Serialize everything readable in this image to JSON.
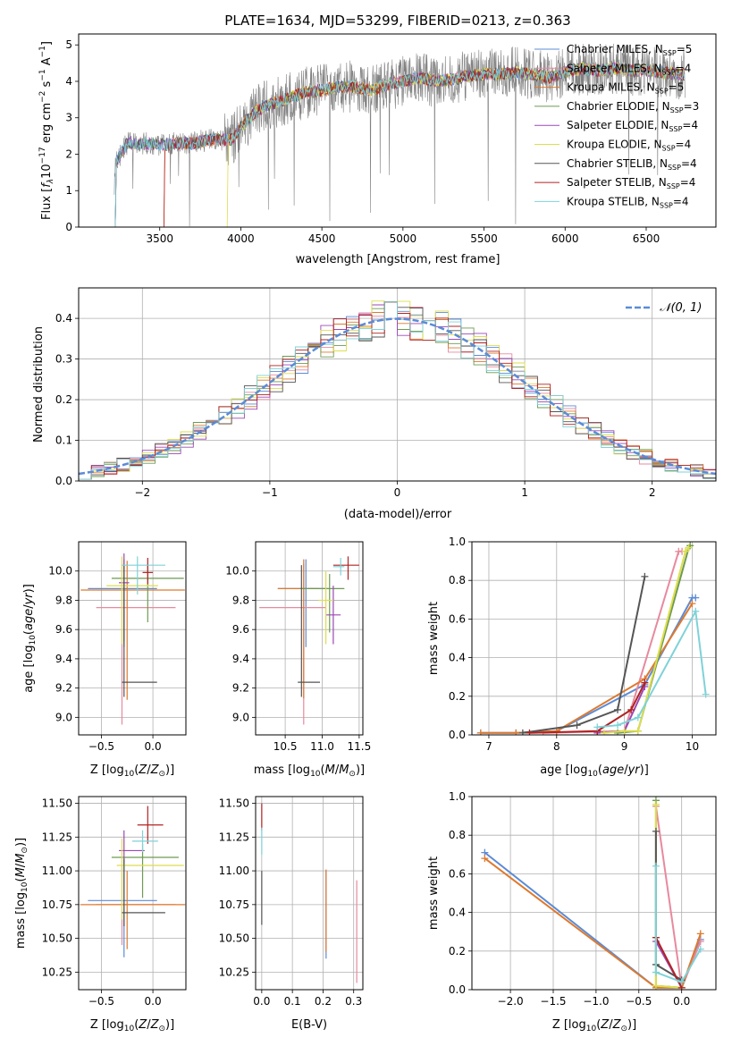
{
  "colors": {
    "Chabrier MILES": "#5b8bd6",
    "Salpeter MILES": "#e8899e",
    "Kroupa MILES": "#dd7a2f",
    "Chabrier ELODIE": "#6e9a52",
    "Salpeter ELODIE": "#9b48b5",
    "Kroupa ELODIE": "#dede4e",
    "Chabrier STELIB": "#555555",
    "Salpeter STELIB": "#b22222",
    "Kroupa STELIB": "#7fd2d8"
  },
  "chart_data": [
    {
      "id": "spectrum",
      "type": "line",
      "title": "PLATE=1634, MJD=53299, FIBERID=0213, z=0.363",
      "xlabel": "wavelength [Angstrom, rest frame]",
      "ylabel": "Flux [fλ10⁻¹⁷ erg cm⁻² s⁻¹ A⁻¹]",
      "xlim": [
        3000,
        6930
      ],
      "ylim": [
        0,
        5.3
      ],
      "xticks": [
        3500,
        4000,
        4500,
        5000,
        5500,
        6000,
        6500
      ],
      "yticks": [
        0,
        1,
        2,
        3,
        4,
        5
      ],
      "legend_position": "top-right",
      "legend": [
        {
          "label": "Chabrier MILES, N",
          "sub": "SSP",
          "tail": "=5",
          "color": "#5b8bd6"
        },
        {
          "label": "Salpeter MILES, N",
          "sub": "SSP",
          "tail": "=4",
          "color": "#e8899e"
        },
        {
          "label": "Kroupa MILES, N",
          "sub": "SSP",
          "tail": "=5",
          "color": "#dd7a2f"
        },
        {
          "label": "Chabrier ELODIE, N",
          "sub": "SSP",
          "tail": "=3",
          "color": "#6e9a52"
        },
        {
          "label": "Salpeter ELODIE, N",
          "sub": "SSP",
          "tail": "=4",
          "color": "#9b48b5"
        },
        {
          "label": "Kroupa ELODIE, N",
          "sub": "SSP",
          "tail": "=4",
          "color": "#dede4e"
        },
        {
          "label": "Chabrier STELIB, N",
          "sub": "SSP",
          "tail": "=4",
          "color": "#555555"
        },
        {
          "label": "Salpeter STELIB, N",
          "sub": "SSP",
          "tail": "=4",
          "color": "#b22222"
        },
        {
          "label": "Kroupa STELIB, N",
          "sub": "SSP",
          "tail": "=4",
          "color": "#7fd2d8"
        }
      ],
      "model_continuum": {
        "x": [
          3200,
          3230,
          3300,
          3400,
          3500,
          3600,
          3700,
          3800,
          3900,
          3950,
          4000,
          4100,
          4200,
          4300,
          4400,
          4500,
          4600,
          4700,
          4800,
          4900,
          5000,
          5100,
          5200,
          5300,
          5400,
          5500,
          5600,
          5700,
          5800,
          5900,
          6000,
          6100,
          6200,
          6300,
          6400,
          6500,
          6600,
          6700,
          6750
        ],
        "y": [
          0.0,
          1.8,
          2.3,
          2.3,
          2.25,
          2.3,
          2.3,
          2.4,
          2.4,
          2.4,
          2.75,
          3.2,
          3.4,
          3.55,
          3.7,
          3.75,
          3.85,
          3.85,
          3.75,
          3.9,
          4.0,
          4.1,
          4.0,
          4.05,
          4.15,
          4.2,
          4.2,
          4.25,
          4.2,
          4.1,
          4.25,
          4.35,
          4.3,
          4.35,
          4.3,
          4.3,
          4.25,
          4.2,
          4.2
        ]
      },
      "data_spectrum": {
        "xrange": [
          3220,
          6740
        ],
        "noise_level": 0.45,
        "color": "#808080"
      }
    },
    {
      "id": "residuals",
      "type": "bar",
      "xlabel": "(data-model)/error",
      "ylabel": "Normed distribution",
      "xlim": [
        -2.5,
        2.5
      ],
      "ylim": [
        0,
        0.475
      ],
      "xticks": [
        -2,
        -1,
        0,
        1,
        2
      ],
      "yticks": [
        0.0,
        0.1,
        0.2,
        0.3,
        0.4
      ],
      "legend_position": "top-right",
      "legend": [
        {
          "label": "𝒩(0, 1)",
          "color": "#5b8bd6",
          "style": "dashed"
        }
      ],
      "bin_width": 0.1,
      "gaussian": {
        "mean": 0,
        "sigma": 1,
        "peak": 0.399
      }
    },
    {
      "id": "age-vs-Z",
      "type": "scatter",
      "xlabel": "Z [log₁₀(Z/Z⊙)]",
      "ylabel": "age  [log₁₀(age/yr)]",
      "xlim": [
        -0.72,
        0.32
      ],
      "ylim": [
        8.88,
        10.2
      ],
      "xticks": [
        -0.5,
        0.0
      ],
      "yticks": [
        9.0,
        9.2,
        9.4,
        9.6,
        9.8,
        10.0
      ],
      "points": [
        {
          "model": "Chabrier MILES",
          "x": -0.28,
          "y": 9.88,
          "xerr": [
            0.35,
            0.32
          ],
          "yerr": [
            0.4,
            0.2
          ]
        },
        {
          "model": "Salpeter MILES",
          "x": -0.3,
          "y": 9.75,
          "xerr": [
            0.25,
            0.52
          ],
          "yerr": [
            0.8,
            0.3
          ]
        },
        {
          "model": "Kroupa MILES",
          "x": -0.25,
          "y": 9.87,
          "xerr": [
            0.45,
            0.56
          ],
          "yerr": [
            0.75,
            0.2
          ]
        },
        {
          "model": "Chabrier ELODIE",
          "x": -0.05,
          "y": 9.95,
          "xerr": [
            0.35,
            0.35
          ],
          "yerr": [
            0.3,
            0.1
          ]
        },
        {
          "model": "Salpeter ELODIE",
          "x": -0.28,
          "y": 9.92,
          "xerr": [
            0.05,
            0.05
          ],
          "yerr": [
            0.4,
            0.2
          ]
        },
        {
          "model": "Kroupa ELODIE",
          "x": -0.3,
          "y": 9.9,
          "xerr": [
            0.15,
            0.35
          ],
          "yerr": [
            0.4,
            0.2
          ]
        },
        {
          "model": "Chabrier STELIB",
          "x": -0.28,
          "y": 9.24,
          "xerr": [
            0.02,
            0.32
          ],
          "yerr": [
            0.1,
            0.8
          ]
        },
        {
          "model": "Salpeter STELIB",
          "x": -0.05,
          "y": 9.99,
          "xerr": [
            0.05,
            0.05
          ],
          "yerr": [
            0.08,
            0.1
          ]
        },
        {
          "model": "Kroupa STELIB",
          "x": -0.15,
          "y": 10.04,
          "xerr": [
            0.15,
            0.27
          ],
          "yerr": [
            0.2,
            0.06
          ]
        }
      ]
    },
    {
      "id": "age-vs-mass",
      "type": "scatter",
      "xlabel": "mass [log₁₀(M/M⊙)]",
      "ylabel": "",
      "xlim": [
        10.1,
        11.55
      ],
      "ylim": [
        8.88,
        10.2
      ],
      "xticks": [
        10.5,
        11.0,
        11.5
      ],
      "yticks": [
        9.0,
        9.2,
        9.4,
        9.6,
        9.8,
        10.0
      ],
      "points": [
        {
          "model": "Chabrier MILES",
          "x": 10.78,
          "y": 9.88,
          "xerr": [
            0.38,
            0.3
          ],
          "yerr": [
            0.4,
            0.2
          ]
        },
        {
          "model": "Salpeter MILES",
          "x": 10.75,
          "y": 9.75,
          "xerr": [
            0.6,
            0.3
          ],
          "yerr": [
            0.8,
            0.3
          ]
        },
        {
          "model": "Kroupa MILES",
          "x": 10.75,
          "y": 9.88,
          "xerr": [
            0.35,
            0.2
          ],
          "yerr": [
            0.75,
            0.2
          ]
        },
        {
          "model": "Chabrier ELODIE",
          "x": 11.1,
          "y": 9.88,
          "xerr": [
            0.4,
            0.2
          ],
          "yerr": [
            0.3,
            0.1
          ]
        },
        {
          "model": "Salpeter ELODIE",
          "x": 11.15,
          "y": 9.7,
          "xerr": [
            0.1,
            0.1
          ],
          "yerr": [
            0.2,
            0.2
          ]
        },
        {
          "model": "Kroupa ELODIE",
          "x": 11.05,
          "y": 9.8,
          "xerr": [
            0.1,
            0.1
          ],
          "yerr": [
            0.3,
            0.2
          ]
        },
        {
          "model": "Chabrier STELIB",
          "x": 10.72,
          "y": 9.24,
          "xerr": [
            0.05,
            0.25
          ],
          "yerr": [
            0.1,
            0.8
          ]
        },
        {
          "model": "Salpeter STELIB",
          "x": 11.35,
          "y": 10.04,
          "xerr": [
            0.2,
            0.15
          ],
          "yerr": [
            0.1,
            0.06
          ]
        },
        {
          "model": "Kroupa STELIB",
          "x": 11.25,
          "y": 10.03,
          "xerr": [
            0.1,
            0.05
          ],
          "yerr": [
            0.06,
            0.06
          ]
        }
      ]
    },
    {
      "id": "weight-vs-age",
      "type": "line",
      "xlabel": "age  [log₁₀(age/yr)]",
      "ylabel": "mass weight",
      "xlim": [
        6.75,
        10.35
      ],
      "ylim": [
        0,
        1.0
      ],
      "xticks": [
        7,
        8,
        9,
        10
      ],
      "yticks": [
        0.0,
        0.2,
        0.4,
        0.6,
        0.8,
        1.0
      ],
      "series": [
        {
          "model": "Chabrier MILES",
          "x": [
            6.88,
            7.4,
            8.0,
            9.3,
            10.0,
            10.05
          ],
          "y": [
            0.01,
            0.01,
            0.02,
            0.26,
            0.71,
            0.71
          ]
        },
        {
          "model": "Salpeter MILES",
          "x": [
            7.8,
            9.0,
            9.8,
            9.85
          ],
          "y": [
            0.01,
            0.02,
            0.95,
            0.95
          ]
        },
        {
          "model": "Kroupa MILES",
          "x": [
            6.88,
            7.4,
            8.0,
            9.3,
            10.0
          ],
          "y": [
            0.01,
            0.01,
            0.02,
            0.29,
            0.68
          ]
        },
        {
          "model": "Chabrier ELODIE",
          "x": [
            8.9,
            9.2,
            9.95,
            9.97
          ],
          "y": [
            0.01,
            0.02,
            0.97,
            0.98
          ]
        },
        {
          "model": "Salpeter ELODIE",
          "x": [
            8.6,
            9.0,
            9.3
          ],
          "y": [
            0.01,
            0.02,
            0.25
          ]
        },
        {
          "model": "Kroupa ELODIE",
          "x": [
            8.7,
            9.0,
            9.2,
            9.9,
            9.95
          ],
          "y": [
            0.01,
            0.02,
            0.02,
            0.95,
            0.97
          ]
        },
        {
          "model": "Chabrier STELIB",
          "x": [
            7.5,
            8.3,
            8.9,
            9.3
          ],
          "y": [
            0.01,
            0.05,
            0.13,
            0.82
          ]
        },
        {
          "model": "Salpeter STELIB",
          "x": [
            7.6,
            8.6,
            9.1,
            9.3
          ],
          "y": [
            0.01,
            0.02,
            0.13,
            0.27
          ]
        },
        {
          "model": "Kroupa STELIB",
          "x": [
            8.6,
            8.9,
            9.2,
            10.05,
            10.2
          ],
          "y": [
            0.04,
            0.05,
            0.09,
            0.64,
            0.21
          ]
        }
      ]
    },
    {
      "id": "mass-vs-Z",
      "type": "scatter",
      "xlabel": "Z [log₁₀(Z/Z⊙)]",
      "ylabel": "mass [log₁₀(M/M⊙)]",
      "xlim": [
        -0.72,
        0.32
      ],
      "ylim": [
        10.12,
        11.55
      ],
      "xticks": [
        -0.5,
        0.0
      ],
      "yticks": [
        10.25,
        10.5,
        10.75,
        11.0,
        11.25,
        11.5
      ],
      "points": [
        {
          "model": "Chabrier MILES",
          "x": -0.28,
          "y": 10.78,
          "xerr": [
            0.35,
            0.32
          ],
          "yerr": [
            0.42,
            0.3
          ]
        },
        {
          "model": "Salpeter MILES",
          "x": -0.3,
          "y": 10.75,
          "xerr": [
            0.25,
            0.52
          ],
          "yerr": [
            0.3,
            0.3
          ]
        },
        {
          "model": "Kroupa MILES",
          "x": -0.25,
          "y": 10.75,
          "xerr": [
            0.45,
            0.56
          ],
          "yerr": [
            0.33,
            0.25
          ]
        },
        {
          "model": "Chabrier ELODIE",
          "x": -0.1,
          "y": 11.1,
          "xerr": [
            0.3,
            0.35
          ],
          "yerr": [
            0.3,
            0.1
          ]
        },
        {
          "model": "Salpeter ELODIE",
          "x": -0.28,
          "y": 11.15,
          "xerr": [
            0.05,
            0.2
          ],
          "yerr": [
            0.1,
            0.15
          ]
        },
        {
          "model": "Kroupa ELODIE",
          "x": -0.3,
          "y": 11.04,
          "xerr": [
            0.05,
            0.6
          ],
          "yerr": [
            0.4,
            0.2
          ]
        },
        {
          "model": "Chabrier STELIB",
          "x": -0.28,
          "y": 10.69,
          "xerr": [
            0.02,
            0.4
          ],
          "yerr": [
            0.1,
            0.4
          ]
        },
        {
          "model": "Salpeter STELIB",
          "x": -0.05,
          "y": 11.34,
          "xerr": [
            0.1,
            0.15
          ],
          "yerr": [
            0.14,
            0.14
          ]
        },
        {
          "model": "Kroupa STELIB",
          "x": -0.1,
          "y": 11.22,
          "xerr": [
            0.1,
            0.15
          ],
          "yerr": [
            0.08,
            0.08
          ]
        }
      ]
    },
    {
      "id": "mass-vs-ebv",
      "type": "scatter",
      "xlabel": "E(B-V)",
      "ylabel": "",
      "xlim": [
        -0.02,
        0.33
      ],
      "ylim": [
        10.12,
        11.55
      ],
      "xticks": [
        0.0,
        0.1,
        0.2,
        0.3
      ],
      "yticks": [
        10.25,
        10.5,
        10.75,
        11.0,
        11.25,
        11.5
      ],
      "points": [
        {
          "model": "Chabrier MILES",
          "x": 0.21,
          "y": 10.75,
          "xerr": [
            0,
            0
          ],
          "yerr": [
            0.4,
            0.25
          ]
        },
        {
          "model": "Salpeter MILES",
          "x": 0.31,
          "y": 10.55,
          "xerr": [
            0,
            0
          ],
          "yerr": [
            0.38,
            0.38
          ]
        },
        {
          "model": "Kroupa MILES",
          "x": 0.21,
          "y": 10.7,
          "xerr": [
            0,
            0
          ],
          "yerr": [
            0.3,
            0.31
          ]
        },
        {
          "model": "Chabrier STELIB",
          "x": 0.0,
          "y": 10.8,
          "xerr": [
            0,
            0
          ],
          "yerr": [
            0.2,
            0.2
          ]
        },
        {
          "model": "Salpeter STELIB",
          "x": 0.0,
          "y": 11.4,
          "xerr": [
            0,
            0
          ],
          "yerr": [
            0.1,
            0.1
          ]
        },
        {
          "model": "Kroupa STELIB",
          "x": 0.0,
          "y": 11.22,
          "xerr": [
            0,
            0
          ],
          "yerr": [
            0.1,
            0.1
          ]
        }
      ]
    },
    {
      "id": "weight-vs-Z",
      "type": "line",
      "xlabel": "Z [log₁₀(Z/Z⊙)]",
      "ylabel": "mass weight",
      "xlim": [
        -2.45,
        0.4
      ],
      "ylim": [
        0,
        1.0
      ],
      "xticks": [
        -2.0,
        -1.5,
        -1.0,
        -0.5,
        0.0
      ],
      "yticks": [
        0.0,
        0.2,
        0.4,
        0.6,
        0.8,
        1.0
      ],
      "series": [
        {
          "model": "Chabrier MILES",
          "x": [
            -2.3,
            -0.3,
            0.0,
            0.22
          ],
          "y": [
            0.71,
            0.01,
            0.01,
            0.26
          ]
        },
        {
          "model": "Salpeter MILES",
          "x": [
            -0.3,
            0.0,
            0.22
          ],
          "y": [
            0.95,
            0.01,
            0.25
          ]
        },
        {
          "model": "Kroupa MILES",
          "x": [
            -2.3,
            -0.3,
            0.0,
            0.22
          ],
          "y": [
            0.68,
            0.01,
            0.01,
            0.29
          ]
        },
        {
          "model": "Chabrier ELODIE",
          "x": [
            -0.3,
            -0.3,
            0.0
          ],
          "y": [
            0.98,
            0.02,
            0.01
          ]
        },
        {
          "model": "Salpeter ELODIE",
          "x": [
            -0.3,
            0.0
          ],
          "y": [
            0.25,
            0.01
          ]
        },
        {
          "model": "Kroupa ELODIE",
          "x": [
            -0.3,
            -0.3,
            0.0
          ],
          "y": [
            0.96,
            0.02,
            0.01
          ]
        },
        {
          "model": "Chabrier STELIB",
          "x": [
            -0.3,
            -0.3,
            0.0
          ],
          "y": [
            0.82,
            0.13,
            0.05
          ]
        },
        {
          "model": "Salpeter STELIB",
          "x": [
            -0.3,
            0.0
          ],
          "y": [
            0.27,
            0.01
          ]
        },
        {
          "model": "Kroupa STELIB",
          "x": [
            -0.3,
            -0.3,
            0.0,
            0.22
          ],
          "y": [
            0.64,
            0.09,
            0.04,
            0.21
          ]
        }
      ]
    }
  ]
}
